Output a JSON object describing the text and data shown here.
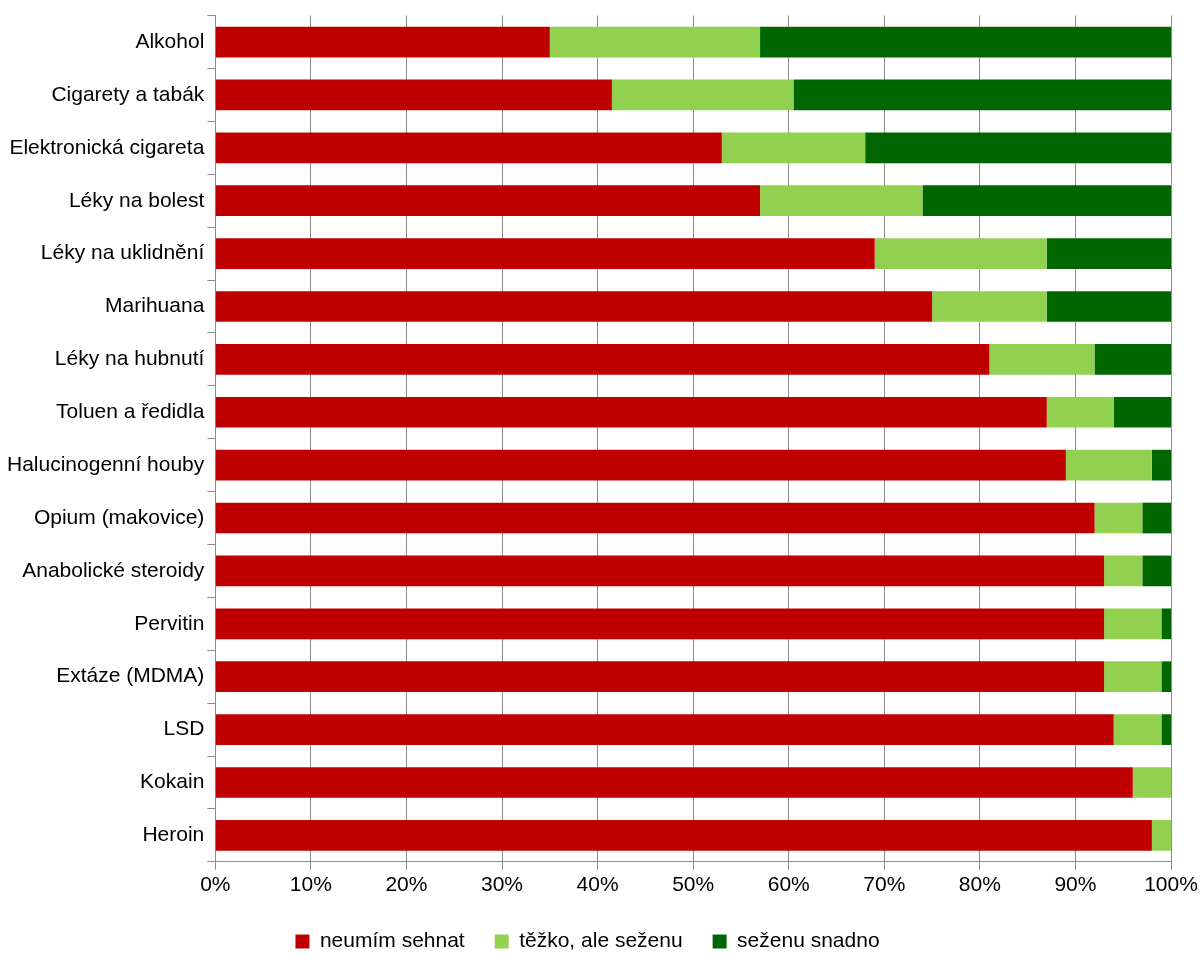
{
  "chart_data": {
    "type": "bar",
    "orientation": "horizontal",
    "stacked": true,
    "categories": [
      "Alkohol",
      "Cigarety a tabák",
      "Elektronická cigareta",
      "Léky na bolest",
      "Léky na uklidnění",
      "Marihuana",
      "Léky na hubnutí",
      "Toluen a ředidla",
      "Halucinogenní houby",
      "Opium (makovice)",
      "Anabolické steroidy",
      "Pervitin",
      "Extáze (MDMA)",
      "LSD",
      "Kokain",
      "Heroin"
    ],
    "series": [
      {
        "name": "neumím sehnat",
        "color": "#c00000",
        "values": [
          35,
          41.5,
          53,
          57,
          69,
          75,
          81,
          87,
          89,
          92,
          93,
          93,
          93,
          94,
          96,
          98
        ]
      },
      {
        "name": "těžko, ale seženu",
        "color": "#92d050",
        "values": [
          22,
          19,
          15,
          17,
          18,
          12,
          11,
          7,
          9,
          5,
          4,
          6,
          6,
          5,
          4,
          2
        ]
      },
      {
        "name": "seženu snadno",
        "color": "#006600",
        "values": [
          43,
          39.5,
          32,
          26,
          13,
          13,
          8,
          6,
          2,
          3,
          3,
          1,
          1,
          1,
          0,
          0
        ]
      }
    ],
    "xlim": [
      0,
      100
    ],
    "xticks": [
      {
        "value": 0,
        "label": "0%"
      },
      {
        "value": 10,
        "label": "10%"
      },
      {
        "value": 20,
        "label": "20%"
      },
      {
        "value": 30,
        "label": "30%"
      },
      {
        "value": 40,
        "label": "40%"
      },
      {
        "value": 50,
        "label": "50%"
      },
      {
        "value": 60,
        "label": "60%"
      },
      {
        "value": 70,
        "label": "70%"
      },
      {
        "value": 80,
        "label": "80%"
      },
      {
        "value": 90,
        "label": "90%"
      },
      {
        "value": 100,
        "label": "100%"
      }
    ],
    "grid": "x",
    "legend": "bottom"
  }
}
